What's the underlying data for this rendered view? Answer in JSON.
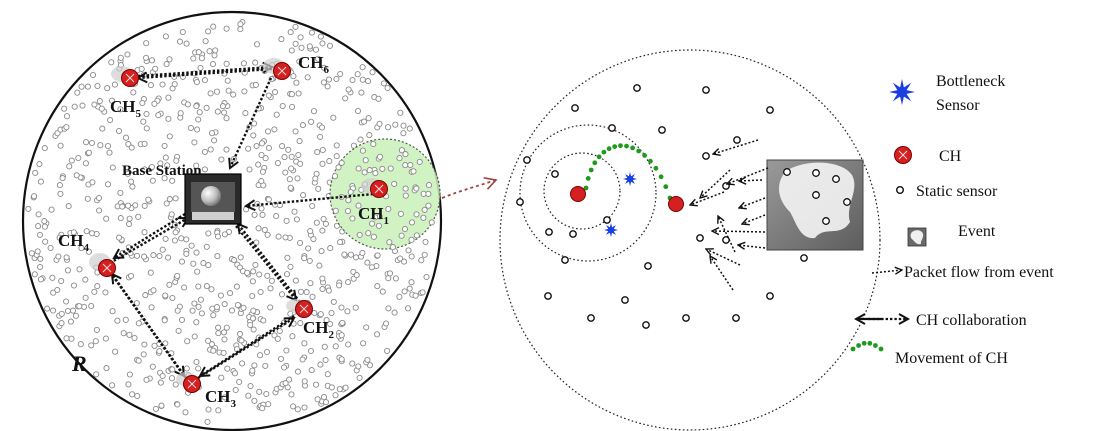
{
  "left_network": {
    "radius_label": "R",
    "base_station_label": "Base Station",
    "cluster_heads": [
      {
        "id": "ch1",
        "base": "CH",
        "sub": "1"
      },
      {
        "id": "ch2",
        "base": "CH",
        "sub": "2"
      },
      {
        "id": "ch3",
        "base": "CH",
        "sub": "3"
      },
      {
        "id": "ch4",
        "base": "CH",
        "sub": "4"
      },
      {
        "id": "ch5",
        "base": "CH",
        "sub": "5"
      },
      {
        "id": "ch6",
        "base": "CH",
        "sub": "6"
      }
    ]
  },
  "legend": {
    "bottleneck": [
      "Bottleneck",
      "Sensor"
    ],
    "ch": "CH",
    "static_sensor": "Static sensor",
    "event": "Event",
    "packet_flow": "Packet flow from event",
    "collaboration": "CH collaboration",
    "movement": "Movement of CH"
  },
  "colors": {
    "cluster_head": "#d42020",
    "bottleneck": "#1a3ee0",
    "movement": "#1f9a1f",
    "coverage": "#c9f0b8",
    "link_arrow": "#a04040"
  }
}
